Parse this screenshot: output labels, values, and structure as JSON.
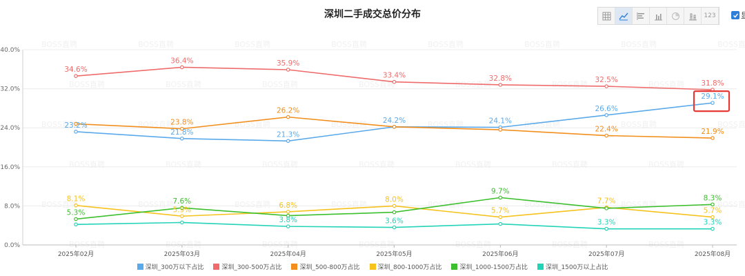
{
  "toolbar": {
    "buttons": [
      {
        "icon": "table-icon",
        "active": false
      },
      {
        "icon": "line-chart-icon",
        "active": true
      },
      {
        "icon": "horizontal-bar-icon",
        "active": false
      },
      {
        "icon": "bar-chart-icon",
        "active": false
      },
      {
        "icon": "pie-chart-icon",
        "active": false
      },
      {
        "icon": "stacked-bar-icon",
        "active": false
      },
      {
        "icon": "number-icon",
        "active": false,
        "label": "123"
      }
    ],
    "checkbox_label": "显",
    "checkbox_checked": true
  },
  "chart_data": {
    "type": "line",
    "title": "深圳二手成交总价分布",
    "xlabel": "",
    "ylabel": "",
    "categories": [
      "2025年02月",
      "2025年03月",
      "2025年04月",
      "2025年05月",
      "2025年06月",
      "2025年07月",
      "2025年08月"
    ],
    "yticks": [
      "0.0%",
      "8.0%",
      "16.0%",
      "24.0%",
      "32.0%",
      "40.0%"
    ],
    "ylim": [
      0,
      40
    ],
    "grid": true,
    "legend_position": "bottom",
    "series": [
      {
        "name": "深圳_300万以下占比",
        "color": "#5aa9ea",
        "values": [
          23.2,
          21.8,
          21.3,
          24.2,
          24.1,
          26.6,
          29.1
        ],
        "labels": [
          "23.2%",
          "21.8%",
          "21.3%",
          "24.2%",
          "24.1%",
          "26.6%",
          "29.1%"
        ],
        "show": [
          true,
          true,
          true,
          true,
          true,
          true,
          true
        ]
      },
      {
        "name": "深圳_300-500万占比",
        "color": "#ef6b6b",
        "values": [
          34.6,
          36.4,
          35.9,
          33.4,
          32.8,
          32.5,
          31.8
        ],
        "labels": [
          "34.6%",
          "36.4%",
          "35.9%",
          "33.4%",
          "32.8%",
          "32.5%",
          "31.8%"
        ],
        "show": [
          true,
          true,
          true,
          true,
          true,
          true,
          true
        ]
      },
      {
        "name": "深圳_500-800万占比",
        "color": "#f28e1c",
        "values": [
          24.8,
          23.8,
          26.2,
          24.2,
          23.6,
          22.4,
          21.9
        ],
        "labels": [
          "",
          "23.8%",
          "26.2%",
          "",
          "",
          "22.4%",
          "21.9%"
        ],
        "show": [
          false,
          true,
          true,
          false,
          false,
          true,
          true
        ]
      },
      {
        "name": "深圳_800-1000万占比",
        "color": "#f6c21b",
        "values": [
          8.1,
          5.9,
          6.8,
          8.0,
          5.7,
          7.7,
          5.7
        ],
        "labels": [
          "8.1%",
          "5.9%",
          "6.8%",
          "8.0%",
          "5.7%",
          "7.7%",
          "5.7%"
        ],
        "show": [
          true,
          true,
          true,
          true,
          true,
          true,
          true
        ]
      },
      {
        "name": "深圳_1000-1500万占比",
        "color": "#3cbf2c",
        "values": [
          5.3,
          7.6,
          6.0,
          6.7,
          9.7,
          7.5,
          8.3
        ],
        "labels": [
          "5.3%",
          "7.6%",
          "",
          "",
          "9.7%",
          "",
          "8.3%"
        ],
        "show": [
          true,
          true,
          false,
          false,
          true,
          false,
          true
        ]
      },
      {
        "name": "深圳_1500万以上占比",
        "color": "#22d3b8",
        "values": [
          4.2,
          4.6,
          3.8,
          3.6,
          4.3,
          3.3,
          3.3
        ],
        "labels": [
          "",
          "",
          "3.8%",
          "3.6%",
          "",
          "3.3%",
          "3.3%"
        ],
        "show": [
          false,
          false,
          true,
          true,
          false,
          true,
          true
        ]
      }
    ],
    "watermark": "BOSS直聘",
    "highlight": {
      "series": 0,
      "index": 6,
      "color": "#e53935"
    }
  }
}
